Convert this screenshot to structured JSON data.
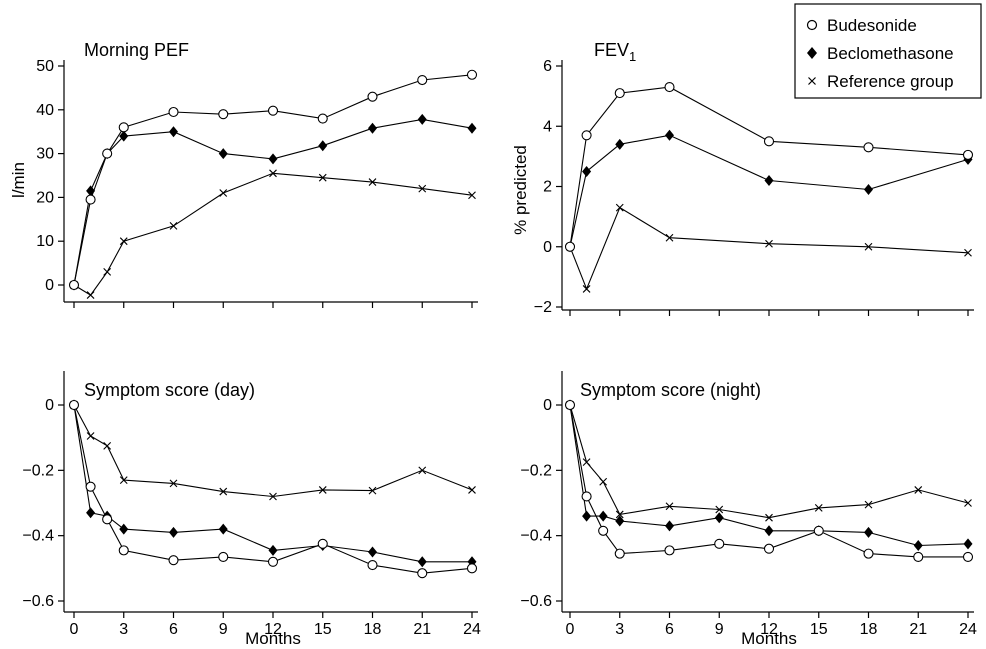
{
  "legend": {
    "items": [
      {
        "name": "Budesonide",
        "marker": "open-circle-icon"
      },
      {
        "name": "Beclomethasone",
        "marker": "filled-diamond-icon"
      },
      {
        "name": "Reference group",
        "marker": "cross-icon"
      }
    ],
    "placement": "top-right"
  },
  "chart_data": [
    {
      "type": "line",
      "title": "Morning PEF",
      "xlabel": "",
      "ylabel": "l/min",
      "xlim": [
        0,
        24
      ],
      "ylim": [
        -5,
        50
      ],
      "xticks": [
        0,
        3,
        6,
        9,
        12,
        15,
        18,
        21,
        24
      ],
      "yticks": [
        0,
        10,
        20,
        30,
        40,
        50
      ],
      "x": [
        0,
        1,
        2,
        3,
        6,
        9,
        12,
        15,
        18,
        21,
        24
      ],
      "series": [
        {
          "name": "Budesonide",
          "marker": "circle",
          "values": [
            0,
            19.5,
            30,
            36,
            39.5,
            39,
            39.8,
            38,
            43,
            46.8,
            48
          ]
        },
        {
          "name": "Beclomethasone",
          "marker": "diamond",
          "values": [
            0,
            21.5,
            30,
            34,
            35,
            30,
            28.8,
            31.8,
            35.8,
            37.8,
            35.8
          ]
        },
        {
          "name": "Reference group",
          "marker": "cross",
          "values": [
            0,
            -2.3,
            3,
            10,
            13.5,
            21,
            25.5,
            24.5,
            23.5,
            22,
            20.5
          ]
        }
      ]
    },
    {
      "type": "line",
      "title": "FEV",
      "title_sub": "1",
      "xlabel": "",
      "ylabel": "% predicted",
      "xlim": [
        0,
        24
      ],
      "ylim": [
        -2,
        6
      ],
      "xticks": [
        0,
        3,
        6,
        9,
        12,
        15,
        18,
        21,
        24
      ],
      "yticks": [
        -2,
        0,
        2,
        4,
        6
      ],
      "series": [
        {
          "name": "Budesonide",
          "marker": "circle",
          "x": [
            0,
            1,
            3,
            6,
            12,
            18,
            24
          ],
          "values": [
            0,
            3.7,
            5.1,
            5.3,
            3.5,
            3.3,
            3.05
          ]
        },
        {
          "name": "Beclomethasone",
          "marker": "diamond",
          "x": [
            0,
            1,
            3,
            6,
            12,
            18,
            24
          ],
          "values": [
            0,
            2.5,
            3.4,
            3.7,
            2.2,
            1.9,
            2.9
          ]
        },
        {
          "name": "Reference group",
          "marker": "cross",
          "x": [
            0,
            1,
            3,
            6,
            12,
            18,
            24
          ],
          "values": [
            0,
            -1.4,
            1.3,
            0.3,
            0.1,
            0.0,
            -0.2
          ]
        }
      ]
    },
    {
      "type": "line",
      "title": "Symptom score (day)",
      "xlabel": "Months",
      "ylabel": "",
      "xlim": [
        0,
        24
      ],
      "ylim": [
        -0.6,
        0.05
      ],
      "xticks": [
        0,
        3,
        6,
        9,
        12,
        15,
        18,
        21,
        24
      ],
      "yticks": [
        0,
        -0.2,
        -0.4,
        -0.6
      ],
      "x": [
        0,
        1,
        2,
        3,
        6,
        9,
        12,
        15,
        18,
        21,
        24
      ],
      "series": [
        {
          "name": "Budesonide",
          "marker": "circle",
          "values": [
            0,
            -0.25,
            -0.35,
            -0.445,
            -0.475,
            -0.465,
            -0.48,
            -0.425,
            -0.49,
            -0.515,
            -0.5
          ]
        },
        {
          "name": "Beclomethasone",
          "marker": "diamond",
          "values": [
            0,
            -0.33,
            -0.34,
            -0.38,
            -0.39,
            -0.38,
            -0.445,
            -0.43,
            -0.45,
            -0.48,
            -0.48
          ]
        },
        {
          "name": "Reference group",
          "marker": "cross",
          "values": [
            0,
            -0.095,
            -0.125,
            -0.23,
            -0.24,
            -0.265,
            -0.28,
            -0.26,
            -0.262,
            -0.2,
            -0.26
          ]
        }
      ]
    },
    {
      "type": "line",
      "title": "Symptom score (night)",
      "xlabel": "Months",
      "ylabel": "",
      "xlim": [
        0,
        24
      ],
      "ylim": [
        -0.6,
        0.05
      ],
      "xticks": [
        0,
        3,
        6,
        9,
        12,
        15,
        18,
        21,
        24
      ],
      "yticks": [
        0,
        -0.2,
        -0.4,
        -0.6
      ],
      "x": [
        0,
        1,
        2,
        3,
        6,
        9,
        12,
        15,
        18,
        21,
        24
      ],
      "series": [
        {
          "name": "Budesonide",
          "marker": "circle",
          "values": [
            0,
            -0.28,
            -0.385,
            -0.455,
            -0.445,
            -0.425,
            -0.44,
            -0.385,
            -0.455,
            -0.465,
            -0.465
          ]
        },
        {
          "name": "Beclomethasone",
          "marker": "diamond",
          "values": [
            0,
            -0.34,
            -0.34,
            -0.355,
            -0.37,
            -0.345,
            -0.385,
            -0.385,
            -0.39,
            -0.43,
            -0.425
          ]
        },
        {
          "name": "Reference group",
          "marker": "cross",
          "values": [
            0,
            -0.175,
            -0.235,
            -0.335,
            -0.31,
            -0.32,
            -0.345,
            -0.315,
            -0.305,
            -0.26,
            -0.3
          ]
        }
      ]
    }
  ]
}
